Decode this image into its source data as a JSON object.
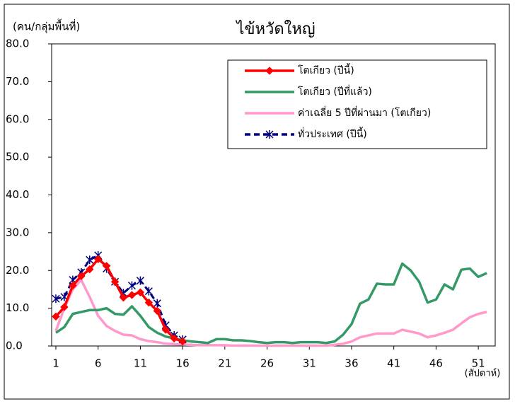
{
  "chart_data": {
    "type": "line",
    "title": "ไข้หวัดใหญ่",
    "y_label": "(คน/กลุ่มพื้นที่)",
    "x_label": "(สัปดาห์)",
    "x": [
      1,
      2,
      3,
      4,
      5,
      6,
      7,
      8,
      9,
      10,
      11,
      12,
      13,
      14,
      15,
      16,
      17,
      18,
      19,
      20,
      21,
      22,
      23,
      24,
      25,
      26,
      27,
      28,
      29,
      30,
      31,
      32,
      33,
      34,
      35,
      36,
      37,
      38,
      39,
      40,
      41,
      42,
      43,
      44,
      45,
      46,
      47,
      48,
      49,
      50,
      51,
      52
    ],
    "xlim": [
      0.5,
      53
    ],
    "xticks": [
      1,
      6,
      11,
      16,
      21,
      26,
      31,
      36,
      41,
      46,
      51
    ],
    "ylim": [
      0,
      80
    ],
    "yticks": [
      {
        "value": 0,
        "label": "0.0"
      },
      {
        "value": 10,
        "label": "10.0"
      },
      {
        "value": 20,
        "label": "20.0"
      },
      {
        "value": 30,
        "label": "30.0"
      },
      {
        "value": 40,
        "label": "40.0"
      },
      {
        "value": 50,
        "label": "50.0"
      },
      {
        "value": 60,
        "label": "60.0"
      },
      {
        "value": 70,
        "label": "70.0"
      },
      {
        "value": 80,
        "label": "80.0"
      }
    ],
    "grid": false,
    "legend": "upper right",
    "series": [
      {
        "name": "โตเกียว (ปีนี้)",
        "color": "#ff0000",
        "marker": "diamond",
        "dashed": false,
        "values": [
          7.8,
          10.3,
          16.0,
          18.5,
          20.3,
          23.0,
          21.2,
          17.0,
          12.8,
          13.5,
          14.2,
          11.5,
          9.3,
          4.3,
          2.0,
          1.2,
          null,
          null,
          null,
          null,
          null,
          null,
          null,
          null,
          null,
          null,
          null,
          null,
          null,
          null,
          null,
          null,
          null,
          null,
          null,
          null,
          null,
          null,
          null,
          null,
          null,
          null,
          null,
          null,
          null,
          null,
          null,
          null,
          null,
          null,
          null,
          null
        ]
      },
      {
        "name": "โตเกียว (ปีที่แล้ว)",
        "color": "#339966",
        "marker": "none",
        "dashed": false,
        "values": [
          3.5,
          5.0,
          8.5,
          9.0,
          9.5,
          9.5,
          10.0,
          8.5,
          8.3,
          10.5,
          8.0,
          5.0,
          3.5,
          2.5,
          2.0,
          1.5,
          1.2,
          1.0,
          0.8,
          1.8,
          1.8,
          1.5,
          1.5,
          1.3,
          1.0,
          0.8,
          1.0,
          1.0,
          0.8,
          1.0,
          1.0,
          1.0,
          0.8,
          1.2,
          3.0,
          5.8,
          11.2,
          12.3,
          16.5,
          16.3,
          16.3,
          21.8,
          20.0,
          17.0,
          11.5,
          12.3,
          16.3,
          15.0,
          20.2,
          20.5,
          18.3,
          19.3
        ]
      },
      {
        "name": "ค่าเฉลี่ย 5 ปีที่ผ่านมา (โตเกียว)",
        "color": "#ff99cc",
        "marker": "none",
        "dashed": false,
        "values": [
          4.0,
          10.0,
          15.0,
          17.5,
          13.0,
          8.0,
          5.3,
          4.0,
          3.0,
          2.8,
          1.8,
          1.3,
          1.0,
          0.6,
          0.5,
          0.4,
          0.3,
          0.2,
          0.2,
          0.2,
          0.2,
          0.1,
          0.1,
          0.1,
          0.1,
          0.1,
          0.1,
          0.1,
          0.1,
          0.1,
          0.1,
          0.1,
          0.1,
          0.3,
          0.6,
          1.2,
          2.3,
          2.8,
          3.3,
          3.3,
          3.3,
          4.3,
          3.8,
          3.3,
          2.3,
          2.8,
          3.5,
          4.3,
          6.0,
          7.6,
          8.5,
          9.0
        ]
      },
      {
        "name": "ทั่วประเทศ (ปีนี้)",
        "color": "#000080",
        "marker": "star",
        "dashed": true,
        "values": [
          12.5,
          13.0,
          17.5,
          19.5,
          22.8,
          24.0,
          20.5,
          17.0,
          14.0,
          16.0,
          17.3,
          14.5,
          11.3,
          5.5,
          2.8,
          1.7,
          null,
          null,
          null,
          null,
          null,
          null,
          null,
          null,
          null,
          null,
          null,
          null,
          null,
          null,
          null,
          null,
          null,
          null,
          null,
          null,
          null,
          null,
          null,
          null,
          null,
          null,
          null,
          null,
          null,
          null,
          null,
          null,
          null,
          null,
          null,
          null
        ]
      }
    ]
  }
}
